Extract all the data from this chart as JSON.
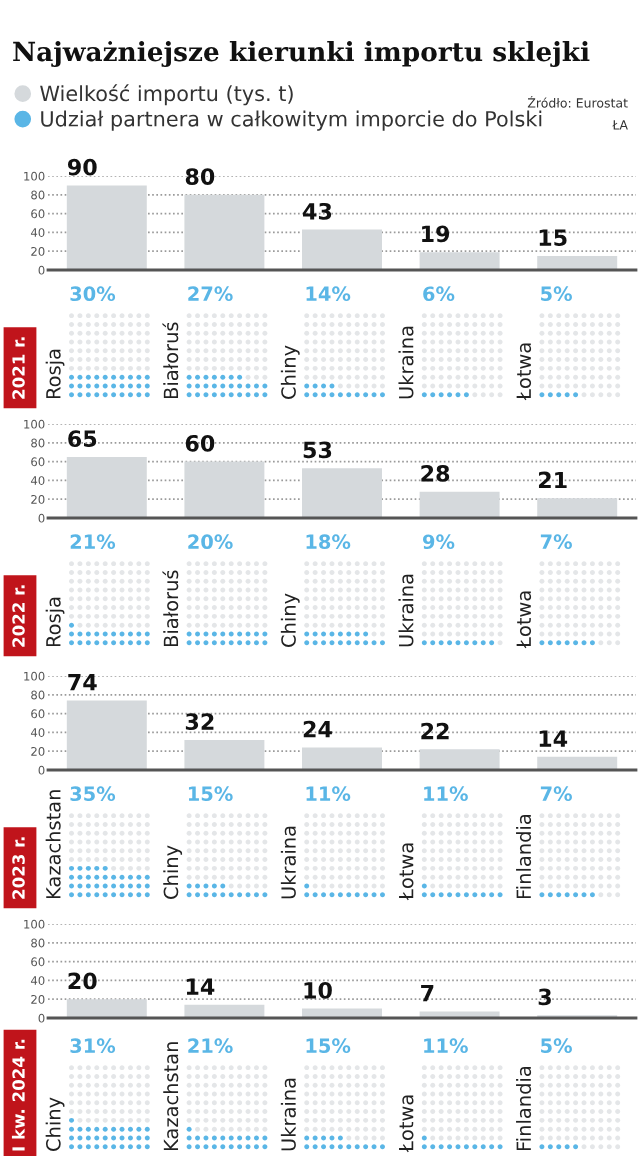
{
  "chart_data": [
    {
      "type": "bar",
      "title": "Najważniejsze kierunki importu sklejki",
      "annotations": [
        "Źródło: Eurostat",
        "ŁA"
      ],
      "categories": [
        null,
        null,
        null,
        null,
        null
      ],
      "series": [
        {
          "name": "Wielkość importu (tys. t)",
          "color": "#d5d9dc",
          "values": [
            90,
            80,
            43,
            19,
            15
          ]
        }
      ],
      "ylim": [
        0,
        100
      ],
      "yticks": [
        0,
        20,
        40,
        60,
        80,
        100
      ],
      "grid": "y",
      "data_labels": true,
      "legend": "top left"
    },
    {
      "type": "other",
      "title": "2021 r.",
      "categories": [
        "Rosja",
        "Białoruś",
        "Chiny",
        "Ukraina",
        "Łotwa"
      ],
      "series": [
        {
          "name": "Udział partnera w całkowitym imporcie do Polski",
          "color": "#5ab6e6",
          "values": [
            30,
            27,
            14,
            6,
            5
          ],
          "value_labels": [
            "30%",
            "27%",
            "14%",
            "6%",
            "5%"
          ]
        }
      ],
      "data_labels": true,
      "legend": "top left"
    },
    {
      "type": "bar",
      "categories": [
        null,
        null,
        null,
        null,
        null
      ],
      "series": [
        {
          "color": "#d5d9dc",
          "values": [
            65,
            60,
            53,
            28,
            21
          ]
        }
      ],
      "ylim": [
        0,
        100
      ],
      "yticks": [
        0,
        20,
        40,
        60,
        80,
        100
      ],
      "grid": "y",
      "data_labels": true
    },
    {
      "type": "other",
      "title": "2022 r.",
      "categories": [
        "Rosja",
        "Białoruś",
        "Chiny",
        "Ukraina",
        "Łotwa"
      ],
      "series": [
        {
          "color": "#5ab6e6",
          "values": [
            21,
            20,
            18,
            9,
            7
          ],
          "value_labels": [
            "21%",
            "20%",
            "18%",
            "9%",
            "7%"
          ]
        }
      ],
      "data_labels": true
    },
    {
      "type": "bar",
      "categories": [
        null,
        null,
        null,
        null,
        null
      ],
      "series": [
        {
          "color": "#d5d9dc",
          "values": [
            74,
            32,
            24,
            22,
            14
          ]
        }
      ],
      "ylim": [
        0,
        100
      ],
      "yticks": [
        0,
        20,
        40,
        60,
        80,
        100
      ],
      "grid": "y",
      "data_labels": true
    },
    {
      "type": "other",
      "title": "2023 r.",
      "categories": [
        "Kazachstan",
        "Chiny",
        "Ukraina",
        "Łotwa",
        "Finlandia"
      ],
      "series": [
        {
          "color": "#5ab6e6",
          "values": [
            35,
            15,
            11,
            11,
            7
          ],
          "value_labels": [
            "35%",
            "15%",
            "11%",
            "11%",
            "7%"
          ]
        }
      ],
      "data_labels": true
    },
    {
      "type": "bar",
      "categories": [
        null,
        null,
        null,
        null,
        null
      ],
      "series": [
        {
          "color": "#d5d9dc",
          "values": [
            20,
            14,
            10,
            7,
            3
          ]
        }
      ],
      "ylim": [
        0,
        100
      ],
      "yticks": [
        0,
        20,
        40,
        60,
        80,
        100
      ],
      "grid": "y",
      "data_labels": true
    },
    {
      "type": "other",
      "title": "I kw. 2024 r.",
      "categories": [
        "Chiny",
        "Kazachstan",
        "Ukraina",
        "Łotwa",
        "Finlandia"
      ],
      "series": [
        {
          "color": "#5ab6e6",
          "values": [
            31,
            21,
            15,
            11,
            5
          ],
          "value_labels": [
            "31%",
            "21%",
            "15%",
            "11%",
            "5%"
          ]
        }
      ],
      "data_labels": true
    }
  ]
}
